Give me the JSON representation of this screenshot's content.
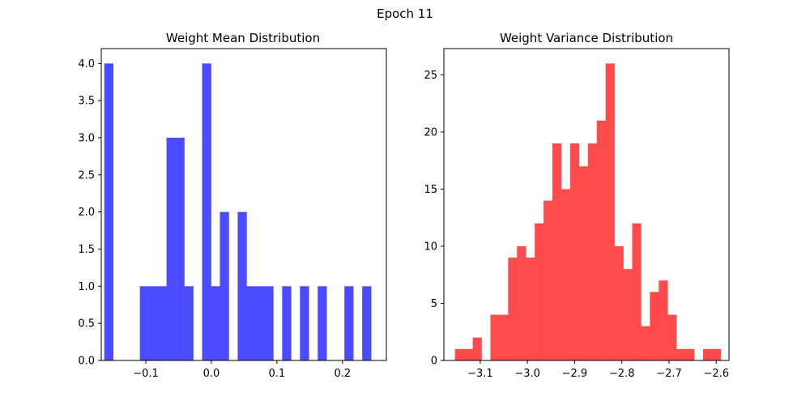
{
  "figure": {
    "suptitle": "Epoch 11"
  },
  "chart_data": [
    {
      "type": "bar",
      "title": "Weight Mean Distribution",
      "xlabel": "",
      "ylabel": "",
      "color": "#4b4bff",
      "xlim": [
        -0.168,
        0.267
      ],
      "ylim": [
        0,
        4.2
      ],
      "xticks": [
        -0.1,
        0.0,
        0.1,
        0.2
      ],
      "xtick_labels": [
        "−0.1",
        "0.0",
        "0.1",
        "0.2"
      ],
      "yticks": [
        0.0,
        0.5,
        1.0,
        1.5,
        2.0,
        2.5,
        3.0,
        3.5,
        4.0
      ],
      "ytick_labels": [
        "0.0",
        "0.5",
        "1.0",
        "1.5",
        "2.0",
        "2.5",
        "3.0",
        "3.5",
        "4.0"
      ],
      "bin_start": -0.1634,
      "bin_width": 0.01357,
      "counts": [
        4,
        0,
        0,
        0,
        1,
        1,
        1,
        3,
        3,
        1,
        0,
        4,
        1,
        2,
        0,
        2,
        1,
        1,
        1,
        0,
        1,
        0,
        1,
        0,
        1,
        0,
        0,
        1,
        0,
        1
      ]
    },
    {
      "type": "bar",
      "title": "Weight Variance Distribution",
      "xlabel": "",
      "ylabel": "",
      "color": "#ff4b4b",
      "xlim": [
        -3.177,
        -2.573
      ],
      "ylim": [
        0,
        27.3
      ],
      "xticks": [
        -3.1,
        -3.0,
        -2.9,
        -2.8,
        -2.7,
        -2.6
      ],
      "xtick_labels": [
        "−3.1",
        "−3.0",
        "−2.9",
        "−2.8",
        "−2.7",
        "−2.6"
      ],
      "yticks": [
        0,
        5,
        10,
        15,
        20,
        25
      ],
      "ytick_labels": [
        "0",
        "5",
        "10",
        "15",
        "20",
        "25"
      ],
      "bin_start": -3.1535,
      "bin_width": 0.01877,
      "counts": [
        1,
        1,
        2,
        0,
        4,
        4,
        9,
        10,
        9,
        12,
        14,
        19,
        15,
        19,
        17,
        19,
        21,
        26,
        10,
        8,
        12,
        3,
        6,
        7,
        4,
        1,
        1,
        0,
        1,
        1
      ]
    }
  ]
}
